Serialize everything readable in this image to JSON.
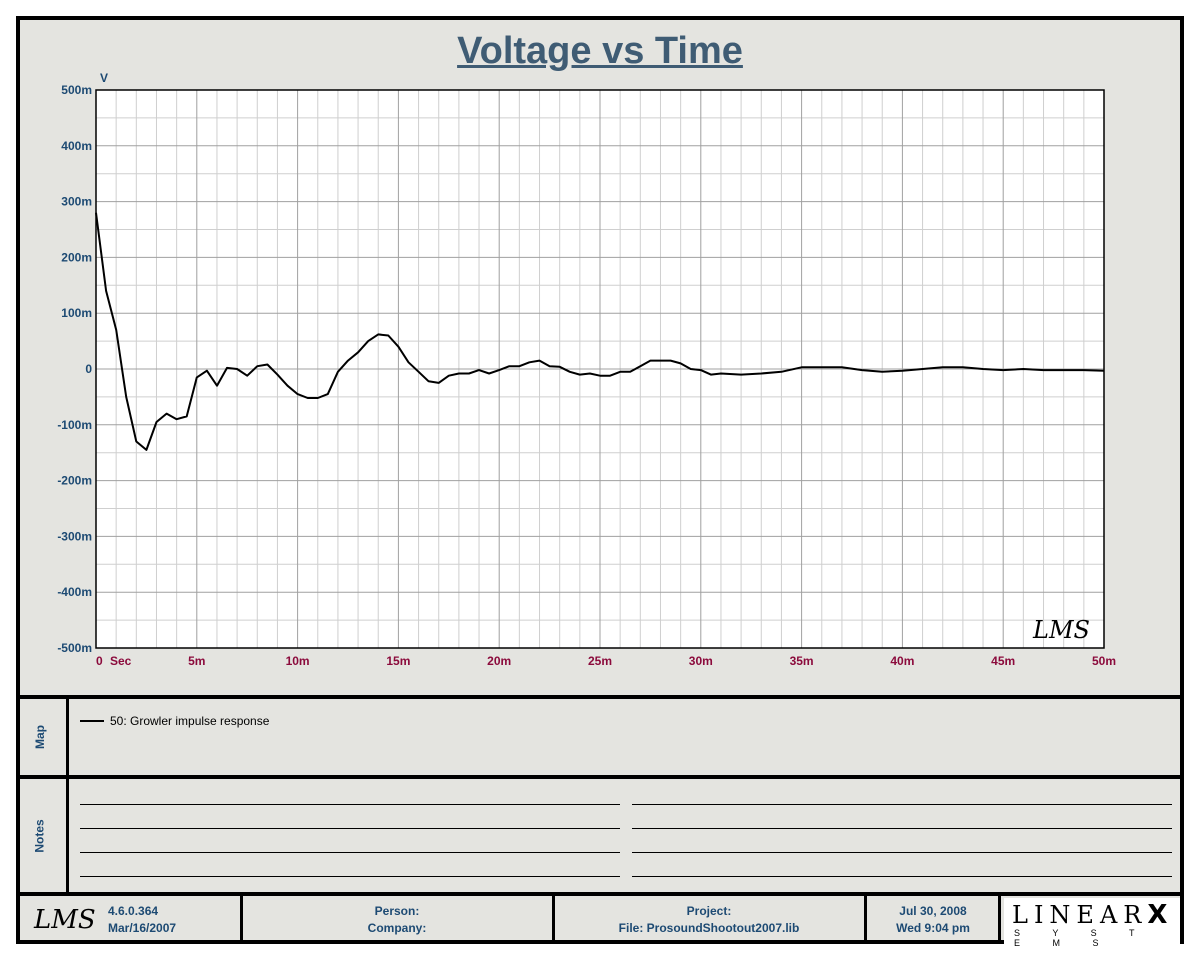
{
  "chart_data": {
    "type": "line",
    "title": "Voltage vs Time",
    "ylabel": "V",
    "xlabel": "Sec",
    "xlim": [
      0,
      0.05
    ],
    "ylim": [
      -0.5,
      0.5
    ],
    "grid": true,
    "x_ticks": [
      "0",
      "5m",
      "10m",
      "15m",
      "20m",
      "25m",
      "30m",
      "35m",
      "40m",
      "45m",
      "50m"
    ],
    "y_ticks": [
      "500m",
      "400m",
      "300m",
      "200m",
      "100m",
      "0",
      "-100m",
      "-200m",
      "-300m",
      "-400m",
      "-500m"
    ],
    "series": [
      {
        "name": "50: Growler impulse response",
        "color": "#000000",
        "x": [
          0,
          0.0005,
          0.001,
          0.0015,
          0.002,
          0.0025,
          0.003,
          0.0035,
          0.004,
          0.0045,
          0.005,
          0.0055,
          0.006,
          0.0065,
          0.007,
          0.0075,
          0.008,
          0.0085,
          0.009,
          0.0095,
          0.01,
          0.0105,
          0.011,
          0.0115,
          0.012,
          0.0125,
          0.013,
          0.0135,
          0.014,
          0.0145,
          0.015,
          0.0155,
          0.016,
          0.0165,
          0.017,
          0.0175,
          0.018,
          0.0185,
          0.019,
          0.0195,
          0.02,
          0.0205,
          0.021,
          0.0215,
          0.022,
          0.0225,
          0.023,
          0.0235,
          0.024,
          0.0245,
          0.025,
          0.0255,
          0.026,
          0.0265,
          0.027,
          0.0275,
          0.028,
          0.0285,
          0.029,
          0.0295,
          0.03,
          0.0305,
          0.031,
          0.032,
          0.033,
          0.034,
          0.035,
          0.036,
          0.037,
          0.038,
          0.039,
          0.04,
          0.041,
          0.042,
          0.043,
          0.044,
          0.045,
          0.046,
          0.047,
          0.048,
          0.049,
          0.05
        ],
        "values": [
          0.28,
          0.14,
          0.07,
          -0.05,
          -0.13,
          -0.145,
          -0.095,
          -0.08,
          -0.09,
          -0.085,
          -0.015,
          -0.003,
          -0.03,
          0.002,
          0,
          -0.012,
          0.005,
          0.008,
          -0.01,
          -0.03,
          -0.045,
          -0.052,
          -0.052,
          -0.045,
          -0.005,
          0.015,
          0.03,
          0.05,
          0.062,
          0.06,
          0.04,
          0.012,
          -0.005,
          -0.022,
          -0.025,
          -0.012,
          -0.008,
          -0.008,
          -0.002,
          -0.008,
          -0.002,
          0.005,
          0.005,
          0.012,
          0.015,
          0.005,
          0.004,
          -0.005,
          -0.01,
          -0.008,
          -0.012,
          -0.012,
          -0.005,
          -0.005,
          0.005,
          0.015,
          0.015,
          0.015,
          0.01,
          0,
          -0.002,
          -0.01,
          -0.008,
          -0.01,
          -0.008,
          -0.005,
          0.003,
          0.003,
          0.003,
          -0.002,
          -0.005,
          -0.003,
          0,
          0.003,
          0.003,
          0,
          -0.002,
          0,
          -0.002,
          -0.002,
          -0.002,
          -0.003
        ]
      }
    ]
  },
  "panels": {
    "map_label": "Map",
    "notes_label": "Notes"
  },
  "footer": {
    "lms_logo": "LMS",
    "version": "4.6.0.364",
    "version_date": "Mar/16/2007",
    "person": "Person:",
    "company": "Company:",
    "project": "Project:",
    "file": "File: ProsoundShootout2007.lib",
    "date": "Jul 30, 2008",
    "time": "Wed  9:04 pm",
    "brand": "LINEAR",
    "brand_x": "X",
    "brand_sub": "S Y S T E M S"
  },
  "watermark": "LMS",
  "colors": {
    "title": "#3f5c74",
    "y_tick": "#1d4a73",
    "x_tick": "#8b0a3c",
    "grid_major": "#a0a0a0",
    "grid_minor": "#cfcfcf"
  }
}
